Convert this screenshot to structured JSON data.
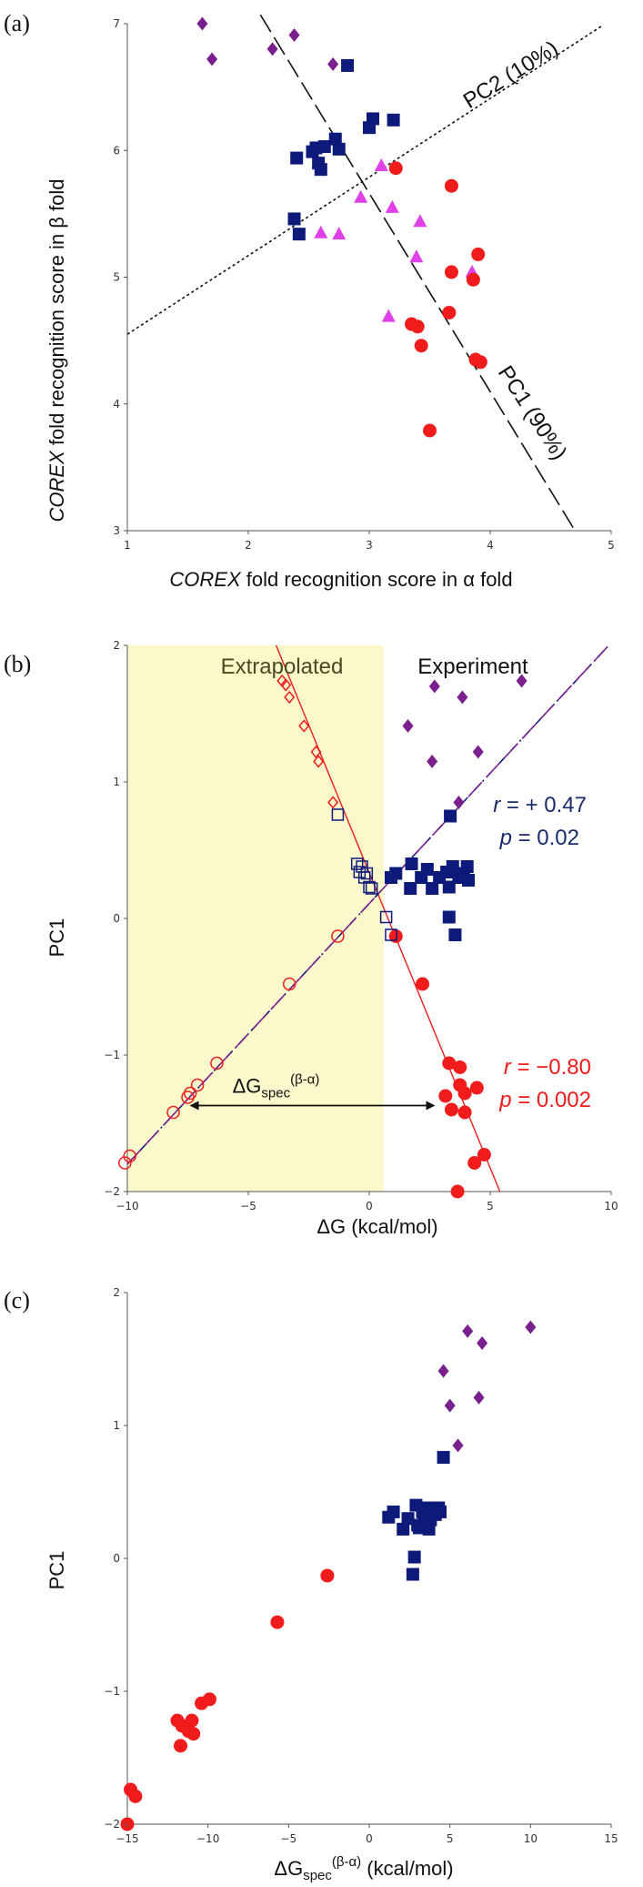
{
  "colors": {
    "purple": "#7a1f8e",
    "navy": "#0d1a7a",
    "magenta": "#e040e8",
    "red": "#f01c1c",
    "navy_text": "#1a2a6a",
    "extrap_bg": "#fbf9cc",
    "extrap_text": "#4a4a20"
  },
  "chart_data": [
    {
      "id": "a",
      "type": "scatter",
      "panel_label": "(a)",
      "xlabel_italic": "COREX",
      "xlabel_rest": " fold recognition score in α fold",
      "ylabel_italic": "COREX",
      "ylabel_rest": " fold recognition score in β fold",
      "xlim": [
        1,
        5
      ],
      "ylim": [
        3,
        7
      ],
      "xticks": [
        "1",
        "2",
        "3",
        "4",
        "5"
      ],
      "yticks": [
        "3",
        "4",
        "5",
        "6",
        "7"
      ],
      "lines": [
        {
          "name": "PC1 (90%)",
          "style": "longdash",
          "x": [
            2.1,
            4.72
          ],
          "y": [
            7.07,
            2.97
          ]
        },
        {
          "name": "PC2 (10%)",
          "style": "dotted",
          "x": [
            1.0,
            4.92
          ],
          "y": [
            4.55,
            6.98
          ]
        }
      ],
      "line_labels": [
        {
          "text": "PC1 (90%)",
          "x": 4.3,
          "y": 3.9,
          "angle": 57
        },
        {
          "text": "PC2 (10%)",
          "x": 4.2,
          "y": 6.55,
          "angle": -32
        }
      ],
      "series": [
        {
          "name": "purple",
          "marker": "diamond",
          "color": "purple",
          "x": [
            1.62,
            1.7,
            2.2,
            2.38,
            2.7
          ],
          "y": [
            7.0,
            6.72,
            6.8,
            6.91,
            6.68
          ]
        },
        {
          "name": "navy",
          "marker": "square",
          "color": "navy",
          "x": [
            2.38,
            2.4,
            2.42,
            2.53,
            2.56,
            2.58,
            2.6,
            2.63,
            2.72,
            2.75,
            2.82,
            3.0,
            3.03,
            3.2
          ],
          "y": [
            5.46,
            5.94,
            5.34,
            5.99,
            6.02,
            5.9,
            5.85,
            6.03,
            6.09,
            6.01,
            6.67,
            6.18,
            6.25,
            6.24
          ]
        },
        {
          "name": "magenta",
          "marker": "triangle",
          "color": "magenta",
          "x": [
            2.6,
            2.75,
            2.93,
            3.1,
            3.16,
            3.19,
            3.39,
            3.42,
            3.85
          ],
          "y": [
            5.35,
            5.34,
            5.63,
            5.88,
            4.69,
            5.55,
            5.16,
            5.44,
            5.04
          ]
        },
        {
          "name": "red",
          "marker": "circle",
          "color": "red",
          "x": [
            3.22,
            3.35,
            3.4,
            3.43,
            3.5,
            3.66,
            3.68,
            3.68,
            3.86,
            3.88,
            3.9,
            3.92
          ],
          "y": [
            5.86,
            4.63,
            4.61,
            4.46,
            3.79,
            4.72,
            5.04,
            5.72,
            4.98,
            4.35,
            5.18,
            4.33
          ]
        }
      ]
    },
    {
      "id": "b",
      "type": "scatter",
      "panel_label": "(b)",
      "xlabel": "ΔG (kcal/mol)",
      "ylabel": "PC1",
      "xlim": [
        -10,
        10
      ],
      "ylim": [
        -2,
        2
      ],
      "xticks": [
        "−10",
        "−5",
        "0",
        "5",
        "10"
      ],
      "yticks": [
        "−2",
        "−1",
        "0",
        "1",
        "2"
      ],
      "shaded_region": {
        "x": [
          -10,
          0.6
        ],
        "label": "Extrapolated"
      },
      "experiment_label": "Experiment",
      "lines": [
        {
          "name": "red fit",
          "color": "red",
          "style": "solid",
          "x": [
            -3.85,
            5.4
          ],
          "y": [
            2.0,
            -2.0
          ]
        },
        {
          "name": "navy fit",
          "color": "navy",
          "style": "dashdot",
          "x": [
            -10.0,
            9.9
          ],
          "y": [
            -1.8,
            2.0
          ]
        },
        {
          "name": "purple fit",
          "color": "purple",
          "style": "longdash",
          "x": [
            -10.0,
            9.9
          ],
          "y": [
            -1.8,
            2.0
          ]
        }
      ],
      "arrow": {
        "x": [
          -7.5,
          2.8
        ],
        "y": -1.37,
        "label_main": "ΔG",
        "label_sub": "spec",
        "label_sup": "(β-α)"
      },
      "stats": [
        {
          "color": "navy_text",
          "r_label": "r",
          "r_value": " = + 0.47",
          "p_label": "p",
          "p_value": " = 0.02"
        },
        {
          "color": "red",
          "r_label": "r",
          "r_value": " = −0.80",
          "p_label": "p",
          "p_value": " = 0.002"
        }
      ],
      "series": [
        {
          "name": "purple",
          "marker": "diamond",
          "color": "purple",
          "x": [
            1.6,
            2.6,
            2.7,
            3.7,
            3.85,
            4.5,
            6.3
          ],
          "y": [
            1.41,
            1.15,
            1.7,
            0.85,
            1.62,
            1.22,
            1.74
          ]
        },
        {
          "name": "navy",
          "marker": "square",
          "color": "navy",
          "x": [
            0.9,
            1.1,
            1.7,
            1.75,
            2.15,
            2.4,
            2.6,
            2.9,
            3.2,
            3.3,
            3.3,
            3.35,
            3.45,
            3.55,
            3.7,
            3.9,
            4.05,
            4.1
          ],
          "y": [
            0.3,
            0.33,
            0.22,
            0.4,
            0.3,
            0.36,
            0.22,
            0.3,
            0.34,
            0.01,
            0.23,
            0.75,
            0.38,
            -0.12,
            0.3,
            0.33,
            0.38,
            0.28
          ]
        },
        {
          "name": "red",
          "marker": "circle",
          "color": "red",
          "x": [
            1.1,
            2.2,
            3.15,
            3.3,
            3.4,
            3.65,
            3.75,
            3.75,
            3.95,
            3.95,
            4.35,
            4.45,
            4.75
          ],
          "y": [
            -0.13,
            -0.48,
            -1.3,
            -1.06,
            -1.4,
            -2.0,
            -1.09,
            -1.22,
            -1.28,
            -1.42,
            -1.79,
            -1.24,
            -1.73
          ]
        },
        {
          "name": "navy-proj",
          "marker": "open-square",
          "color": "navy",
          "x": [
            -1.3,
            -0.5,
            -0.4,
            -0.3,
            -0.2,
            -0.1,
            0.0,
            0.1,
            0.7,
            0.9
          ],
          "y": [
            0.76,
            0.4,
            0.34,
            0.38,
            0.3,
            0.33,
            0.23,
            0.22,
            0.01,
            -0.12
          ]
        },
        {
          "name": "purple-proj",
          "marker": "open-diamond",
          "color": "red",
          "x": [
            -3.6,
            -3.45,
            -3.3,
            -2.7,
            -2.2,
            -2.1,
            -1.5
          ],
          "y": [
            1.74,
            1.71,
            1.62,
            1.41,
            1.22,
            1.15,
            0.85
          ]
        },
        {
          "name": "red-proj",
          "marker": "open-circle",
          "color": "red",
          "x": [
            -1.3,
            -3.3,
            -6.3,
            -7.1,
            -7.4,
            -7.5,
            -8.1,
            -9.9,
            -10.1
          ],
          "y": [
            -0.13,
            -0.48,
            -1.06,
            -1.22,
            -1.28,
            -1.31,
            -1.42,
            -1.74,
            -1.79
          ]
        }
      ]
    },
    {
      "id": "c",
      "type": "scatter",
      "panel_label": "(c)",
      "xlabel_main": "ΔG",
      "xlabel_sub": "spec",
      "xlabel_sup": "(β-α)",
      "xlabel_rest": " (kcal/mol)",
      "ylabel": "PC1",
      "xlim": [
        -15,
        15
      ],
      "ylim": [
        -2,
        2
      ],
      "xticks": [
        "−15",
        "−10",
        "−5",
        "0",
        "5",
        "10",
        "15"
      ],
      "yticks": [
        "−2",
        "−1",
        "0",
        "1",
        "2"
      ],
      "series": [
        {
          "name": "purple",
          "marker": "diamond",
          "color": "purple",
          "x": [
            4.6,
            5.0,
            5.5,
            6.1,
            6.8,
            7.0,
            10.0
          ],
          "y": [
            1.41,
            1.15,
            0.85,
            1.71,
            1.21,
            1.62,
            1.74
          ]
        },
        {
          "name": "navy",
          "marker": "square",
          "color": "navy",
          "x": [
            1.2,
            1.5,
            2.1,
            2.4,
            2.7,
            2.8,
            2.9,
            3.0,
            3.1,
            3.3,
            3.4,
            3.6,
            3.7,
            3.8,
            4.1,
            4.3,
            4.4,
            4.6
          ],
          "y": [
            0.31,
            0.35,
            0.22,
            0.3,
            -0.12,
            0.01,
            0.4,
            0.25,
            0.23,
            0.35,
            0.3,
            0.38,
            0.22,
            0.29,
            0.33,
            0.38,
            0.35,
            0.76
          ]
        },
        {
          "name": "red",
          "marker": "circle",
          "color": "red",
          "x": [
            -15.0,
            -14.8,
            -14.5,
            -11.9,
            -11.7,
            -11.6,
            -11.2,
            -11.0,
            -10.9,
            -10.4,
            -9.9,
            -5.7,
            -2.6
          ],
          "y": [
            -2.0,
            -1.74,
            -1.79,
            -1.22,
            -1.41,
            -1.26,
            -1.3,
            -1.22,
            -1.32,
            -1.09,
            -1.06,
            -0.48,
            -0.13
          ]
        }
      ]
    }
  ]
}
